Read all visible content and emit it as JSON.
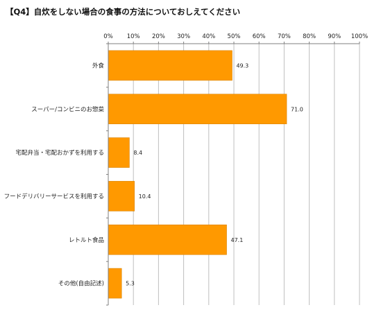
{
  "chart_data": {
    "type": "bar",
    "orientation": "horizontal",
    "title": "【Q4】自炊をしない場合の食事の方法についておしえてください",
    "categories": [
      "外食",
      "スーパー/コンビニのお惣菜",
      "宅配弁当・宅配おかずを利用する",
      "フードデリバリーサービスを利用する",
      "レトルト食品",
      "その他(自由記述)"
    ],
    "values": [
      49.3,
      71.0,
      8.4,
      10.4,
      47.1,
      5.3
    ],
    "value_labels": [
      "49.3",
      "71.0",
      "8.4",
      "10.4",
      "47.1",
      "5.3"
    ],
    "xlim": [
      0,
      100
    ],
    "x_ticks": [
      "0%",
      "10%",
      "20%",
      "30%",
      "40%",
      "50%",
      "60%",
      "70%",
      "80%",
      "90%",
      "100%"
    ],
    "x_tick_values": [
      0,
      10,
      20,
      30,
      40,
      50,
      60,
      70,
      80,
      90,
      100
    ],
    "x_axis_position": "top",
    "grid": true,
    "legend": "none",
    "bar_color": "#FF9900",
    "bar_edge_color": "#D98200",
    "grid_color": "#BFBFBF",
    "axis_color": "#7F7F7F"
  }
}
